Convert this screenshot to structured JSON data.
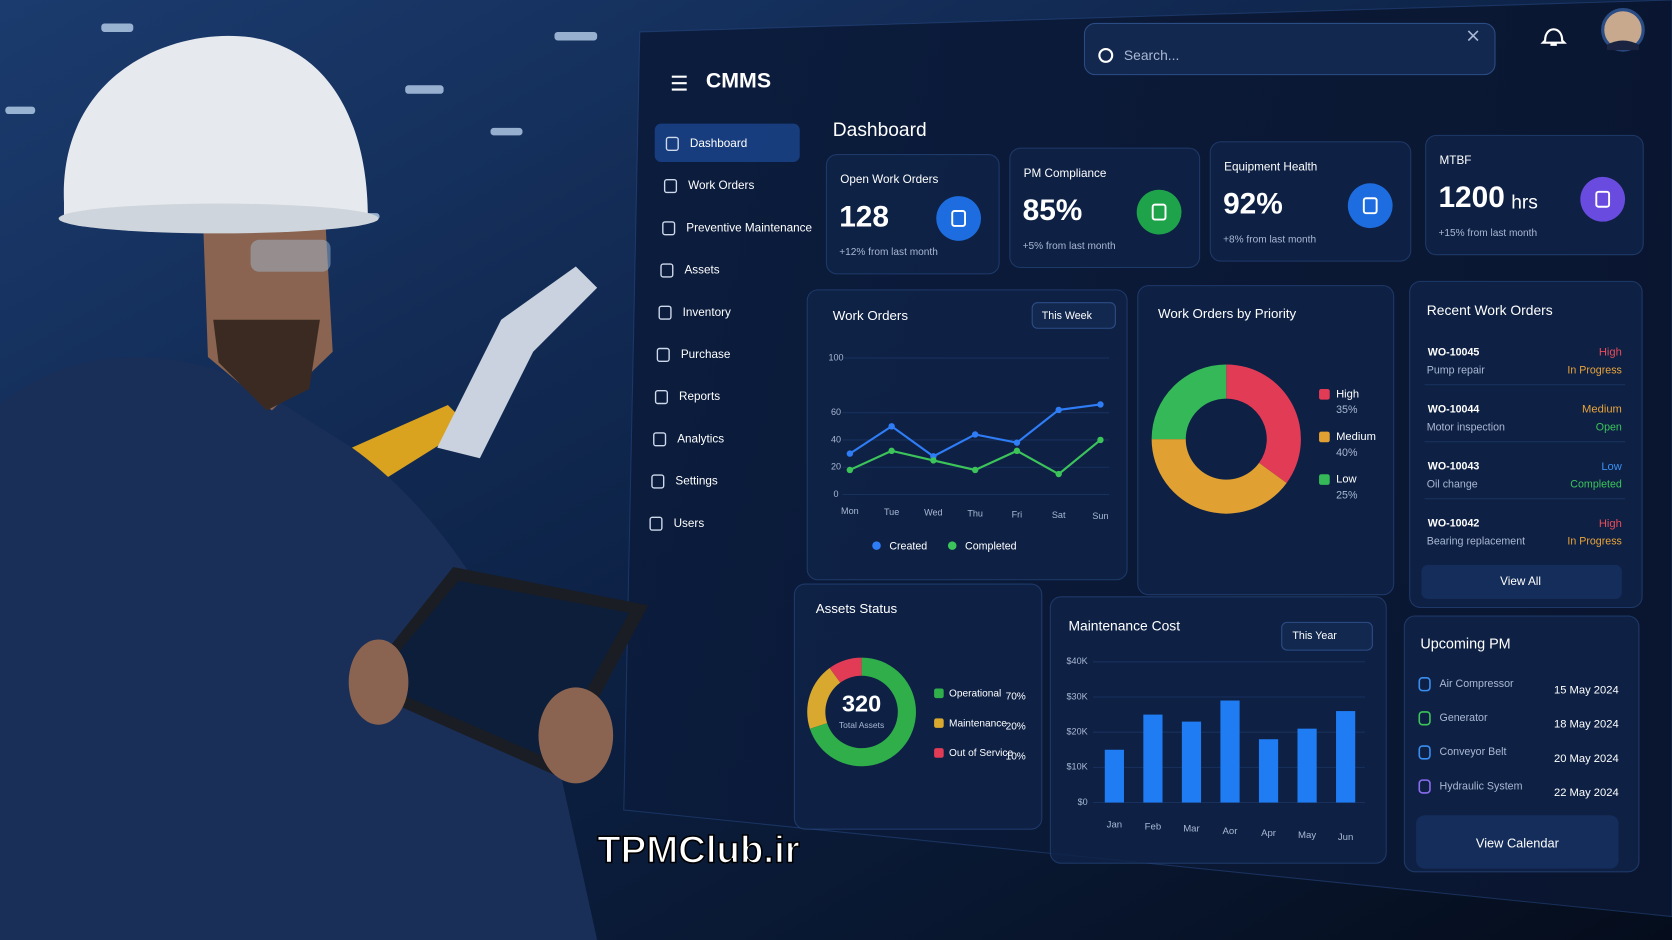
{
  "app_name": "CMMS",
  "search_placeholder": "Search...",
  "nav": [
    "Dashboard",
    "Work Orders",
    "Preventive Maintenance",
    "Assets",
    "Inventory",
    "Purchase",
    "Reports",
    "Analytics",
    "Settings",
    "Users"
  ],
  "page_title": "Dashboard",
  "kpis": [
    {
      "label": "Open Work Orders",
      "value": "128",
      "change": "+12% from last month"
    },
    {
      "label": "PM Compliance",
      "value": "85%",
      "change": "+5% from last month"
    },
    {
      "label": "Equipment Health",
      "value": "92%",
      "change": "+8% from last month"
    },
    {
      "label": "MTBF",
      "value": "1200",
      "unit": "hrs",
      "change": "+15% from last month"
    }
  ],
  "work_orders_chart": {
    "type": "line",
    "title": "Work Orders",
    "filter": "This Week",
    "categories": [
      "Mon",
      "Tue",
      "Wed",
      "Thu",
      "Fri",
      "Sat",
      "Sun"
    ],
    "series": [
      {
        "name": "Created",
        "color": "#2f7df6",
        "values": [
          30,
          50,
          28,
          44,
          38,
          62,
          66
        ]
      },
      {
        "name": "Completed",
        "color": "#3cc45a",
        "values": [
          18,
          32,
          25,
          18,
          32,
          15,
          40
        ]
      }
    ],
    "ylim": [
      0,
      100
    ],
    "yticks": [
      0,
      20,
      40,
      60,
      100
    ]
  },
  "priority_chart": {
    "type": "pie",
    "title": "Work Orders by Priority",
    "categories": [
      "High",
      "Medium",
      "Low"
    ],
    "values": [
      35,
      40,
      25
    ],
    "value_labels": [
      "35%",
      "40%",
      "25%"
    ],
    "colors": [
      "#e23b55",
      "#e0a032",
      "#35b857"
    ]
  },
  "recent_work_orders": {
    "title": "Recent Work Orders",
    "items": [
      {
        "id": "WO-10045",
        "description": "Pump repair",
        "priority": "High",
        "status": "In Progress"
      },
      {
        "id": "WO-10044",
        "description": "Motor inspection",
        "priority": "Medium",
        "status": "Open"
      },
      {
        "id": "WO-10043",
        "description": "Oil change",
        "priority": "Low",
        "status": "Completed"
      },
      {
        "id": "WO-10042",
        "description": "Bearing replacement",
        "priority": "High",
        "status": "In Progress"
      }
    ],
    "button": "View All"
  },
  "assets_chart": {
    "type": "pie",
    "title": "Assets Status",
    "total": 320,
    "total_label": "Total Assets",
    "categories": [
      "Operational",
      "Maintenance",
      "Out of Service"
    ],
    "values": [
      70,
      20,
      10
    ],
    "value_labels": [
      "70%",
      "20%",
      "10%"
    ],
    "colors": [
      "#2fae4a",
      "#d9a82e",
      "#e23b55"
    ]
  },
  "maintenance_cost_chart": {
    "type": "bar",
    "title": "Maintenance Cost",
    "filter": "This Year",
    "categories": [
      "Jan",
      "Feb",
      "Mar",
      "Aor",
      "Apr",
      "May",
      "Jun"
    ],
    "values": [
      15000,
      25000,
      23000,
      29000,
      18000,
      21000,
      26000
    ],
    "color": "#1f7cf2",
    "ylim": [
      0,
      40000
    ],
    "yticks": [
      {
        "value": 0,
        "label": "$0"
      },
      {
        "value": 10000,
        "label": "$10K"
      },
      {
        "value": 20000,
        "label": "$20K"
      },
      {
        "value": 30000,
        "label": "$30K"
      },
      {
        "value": 40000,
        "label": "$40K"
      }
    ]
  },
  "upcoming_pm": {
    "title": "Upcoming PM",
    "items": [
      {
        "name": "Air Compressor",
        "date": "15 May 2024"
      },
      {
        "name": "Generator",
        "date": "18 May 2024"
      },
      {
        "name": "Conveyor Belt",
        "date": "20 May 2024"
      },
      {
        "name": "Hydraulic System",
        "date": "22 May 2024"
      }
    ],
    "button": "View Calendar"
  },
  "watermark": "TPMClub.ir"
}
